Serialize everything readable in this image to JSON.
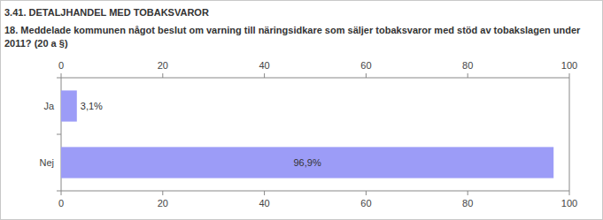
{
  "chart_data": {
    "type": "bar",
    "orientation": "horizontal",
    "section": "3.41. DETALJHANDEL MED TOBAKSVAROR",
    "title": "18. Meddelade kommunen något beslut om varning till näringsidkare som säljer tobaksvaror med stöd av tobakslagen under 2011? (20 a §)",
    "categories": [
      "Ja",
      "Nej"
    ],
    "values": [
      3.1,
      96.9
    ],
    "value_labels": [
      "3,1%",
      "96,9%"
    ],
    "data_labels": true,
    "color": "#9c9cf7",
    "xlim": [
      0,
      100
    ],
    "xticks": [
      0,
      20,
      40,
      60,
      80,
      100
    ],
    "grid": false
  }
}
